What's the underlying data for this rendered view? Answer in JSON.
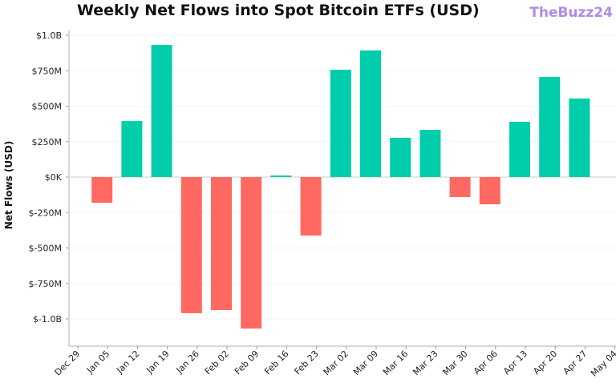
{
  "chart_data": {
    "type": "bar",
    "title": "Weekly Net Flows into Spot Bitcoin ETFs (USD)",
    "xlabel": "",
    "ylabel": "Net Flows (USD)",
    "ylim": [
      -1100000000,
      1000000000
    ],
    "grid": true,
    "x_tick_labels": [
      "Dec 29",
      "Jan 05",
      "Jan 12",
      "Jan 19",
      "Jan 26",
      "Feb 02",
      "Feb 09",
      "Feb 16",
      "Feb 23",
      "Mar 02",
      "Mar 09",
      "Mar 16",
      "Mar 23",
      "Mar 30",
      "Apr 06",
      "Apr 13",
      "Apr 20",
      "Apr 27",
      "May 04"
    ],
    "y_ticks": [
      1000000000,
      750000000,
      500000000,
      250000000,
      0,
      -250000000,
      -500000000,
      -750000000,
      -1000000000
    ],
    "y_tick_labels": [
      "$1.0B",
      "$750M",
      "$500M",
      "$250M",
      "$0K",
      "$-250M",
      "$-500M",
      "$-750M",
      "$-1.0B"
    ],
    "categories": [
      "Jan 05",
      "Jan 12",
      "Jan 19",
      "Jan 26",
      "Feb 02",
      "Feb 09",
      "Feb 16",
      "Feb 23",
      "Mar 02",
      "Mar 09",
      "Mar 16",
      "Mar 23",
      "Mar 30",
      "Apr 06",
      "Apr 13",
      "Apr 20",
      "Apr 27"
    ],
    "values": [
      -181000000,
      395000000,
      932000000,
      -960000000,
      -938000000,
      -1068000000,
      11000000,
      -412000000,
      757000000,
      893000000,
      277000000,
      333000000,
      -141000000,
      -192000000,
      390000000,
      706000000,
      554000000
    ],
    "colors": {
      "positive": "#00cdac",
      "negative": "#ff6961"
    }
  },
  "watermark": "TheBuzz24"
}
